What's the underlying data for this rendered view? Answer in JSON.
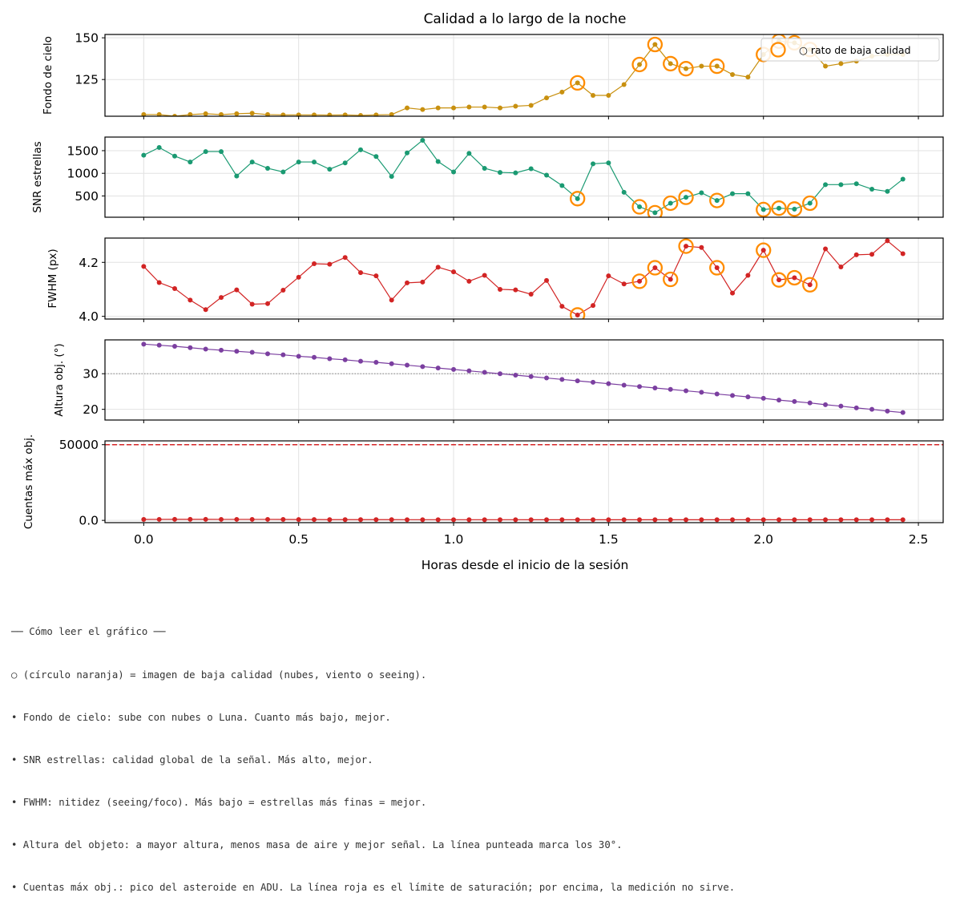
{
  "chart_data": {
    "type": "line",
    "title": "Calidad a lo largo de la noche",
    "xlabel": "Horas desde el inicio de la sesión",
    "xlim": [
      -0.125,
      2.58
    ],
    "x_ticks": [
      0.0,
      0.5,
      1.0,
      1.5,
      2.0,
      2.5
    ],
    "x_tick_labels": [
      "0.0",
      "0.5",
      "1.0",
      "1.5",
      "2.0",
      "2.5"
    ],
    "x": [
      0.0,
      0.05,
      0.1,
      0.15,
      0.2,
      0.25,
      0.3,
      0.35,
      0.4,
      0.45,
      0.5,
      0.55,
      0.6,
      0.65,
      0.7,
      0.75,
      0.8,
      0.85,
      0.9,
      0.95,
      1.0,
      1.05,
      1.1,
      1.15,
      1.2,
      1.25,
      1.3,
      1.35,
      1.4,
      1.45,
      1.5,
      1.55,
      1.6,
      1.65,
      1.7,
      1.75,
      1.8,
      1.85,
      1.9,
      1.95,
      2.0,
      2.05,
      2.1,
      2.15,
      2.2,
      2.25,
      2.3,
      2.35,
      2.4,
      2.45
    ],
    "low_quality_indices": [
      28,
      32,
      33,
      34,
      35,
      37,
      40,
      41,
      42,
      43
    ],
    "legend": {
      "label": "○ rato de baja calidad",
      "position": "upper-right"
    },
    "grid": true,
    "subplots": [
      {
        "ylabel": "Fondo de cielo",
        "color": "#c8900f",
        "ylim": [
          103,
          152
        ],
        "y_ticks": [
          125,
          150
        ],
        "show_legend": true,
        "values": [
          104,
          104,
          103,
          104,
          104.5,
          104,
          104.5,
          104.8,
          104,
          103.8,
          103.8,
          103.8,
          103.7,
          103.8,
          103.5,
          103.8,
          104,
          108,
          107,
          108,
          108,
          108.5,
          108.5,
          108,
          109,
          109.5,
          114,
          117.5,
          123,
          115.5,
          115.5,
          122,
          134,
          146,
          134.5,
          131.5,
          133,
          133,
          128,
          126.5,
          140,
          148,
          147,
          143,
          133,
          134.5,
          136,
          139,
          140,
          140
        ]
      },
      {
        "ylabel": "SNR estrellas",
        "color": "#1a9a72",
        "ylim": [
          30,
          1800
        ],
        "y_ticks": [
          500,
          1000,
          1500
        ],
        "values": [
          1400,
          1570,
          1380,
          1250,
          1480,
          1480,
          940,
          1250,
          1110,
          1030,
          1250,
          1250,
          1090,
          1230,
          1520,
          1370,
          930,
          1450,
          1730,
          1260,
          1030,
          1440,
          1110,
          1020,
          1010,
          1100,
          960,
          730,
          440,
          1210,
          1230,
          580,
          260,
          130,
          340,
          470,
          570,
          400,
          550,
          550,
          200,
          230,
          210,
          340,
          750,
          750,
          770,
          650,
          600,
          870
        ]
      },
      {
        "ylabel": "FWHM (px)",
        "color": "#d22424",
        "ylim": [
          3.99,
          4.29
        ],
        "y_ticks": [
          4.0,
          4.2
        ],
        "values": [
          4.185,
          4.125,
          4.103,
          4.06,
          4.025,
          4.07,
          4.098,
          4.045,
          4.047,
          4.097,
          4.145,
          4.195,
          4.193,
          4.218,
          4.162,
          4.15,
          4.06,
          4.124,
          4.127,
          4.182,
          4.165,
          4.13,
          4.152,
          4.1,
          4.098,
          4.082,
          4.133,
          4.037,
          4.005,
          4.04,
          4.15,
          4.12,
          4.13,
          4.18,
          4.137,
          4.26,
          4.255,
          4.18,
          4.086,
          4.152,
          4.245,
          4.135,
          4.143,
          4.117,
          4.25,
          4.183,
          4.228,
          4.23,
          4.28,
          4.232
        ]
      },
      {
        "ylabel": "Altura obj. (°)",
        "color": "#7b3fa0",
        "ylim": [
          17,
          39.5
        ],
        "y_ticks": [
          20,
          30
        ],
        "hline": {
          "value": 30,
          "style": "dotted",
          "color": "#999999"
        },
        "values": [
          38.3,
          38.0,
          37.7,
          37.3,
          36.9,
          36.6,
          36.3,
          36.0,
          35.6,
          35.3,
          34.9,
          34.6,
          34.2,
          33.9,
          33.5,
          33.2,
          32.8,
          32.4,
          32.0,
          31.6,
          31.2,
          30.8,
          30.4,
          30.0,
          29.6,
          29.2,
          28.8,
          28.4,
          28.0,
          27.6,
          27.2,
          26.8,
          26.4,
          26.0,
          25.6,
          25.2,
          24.8,
          24.3,
          23.9,
          23.5,
          23.1,
          22.6,
          22.2,
          21.8,
          21.3,
          20.9,
          20.4,
          20.0,
          19.5,
          19.1
        ]
      },
      {
        "ylabel": "Cuentas máx obj.",
        "color": "#d22424",
        "ylim": [
          -1500,
          52500
        ],
        "y_ticks": [
          0,
          50000
        ],
        "hline": {
          "value": 50000,
          "style": "dashed",
          "color": "#d62728"
        },
        "values": [
          600,
          650,
          700,
          700,
          700,
          650,
          650,
          650,
          650,
          600,
          550,
          550,
          500,
          500,
          500,
          500,
          500,
          450,
          450,
          450,
          450,
          450,
          450,
          450,
          450,
          400,
          400,
          400,
          400,
          400,
          400,
          400,
          400,
          400,
          400,
          400,
          400,
          400,
          400,
          400,
          400,
          400,
          400,
          400,
          400,
          400,
          400,
          400,
          400,
          400
        ]
      }
    ]
  },
  "notes": {
    "header": "── Cómo leer el gráfico ──",
    "lines": [
      "○ (círculo naranja) = imagen de baja calidad (nubes, viento o seeing).",
      "• Fondo de cielo: sube con nubes o Luna. Cuanto más bajo, mejor.",
      "• SNR estrellas: calidad global de la señal. Más alto, mejor.",
      "• FWHM: nitidez (seeing/foco). Más bajo = estrellas más finas = mejor.",
      "• Altura del objeto: a mayor altura, menos masa de aire y mejor señal. La línea punteada marca los 30°.",
      "• Cuentas máx obj.: pico del asteroide en ADU. La línea roja es el límite de saturación; por encima, la medición no sirve."
    ]
  },
  "colors": {
    "highlight": "#ff8c00",
    "grid": "#e2e2e2"
  }
}
